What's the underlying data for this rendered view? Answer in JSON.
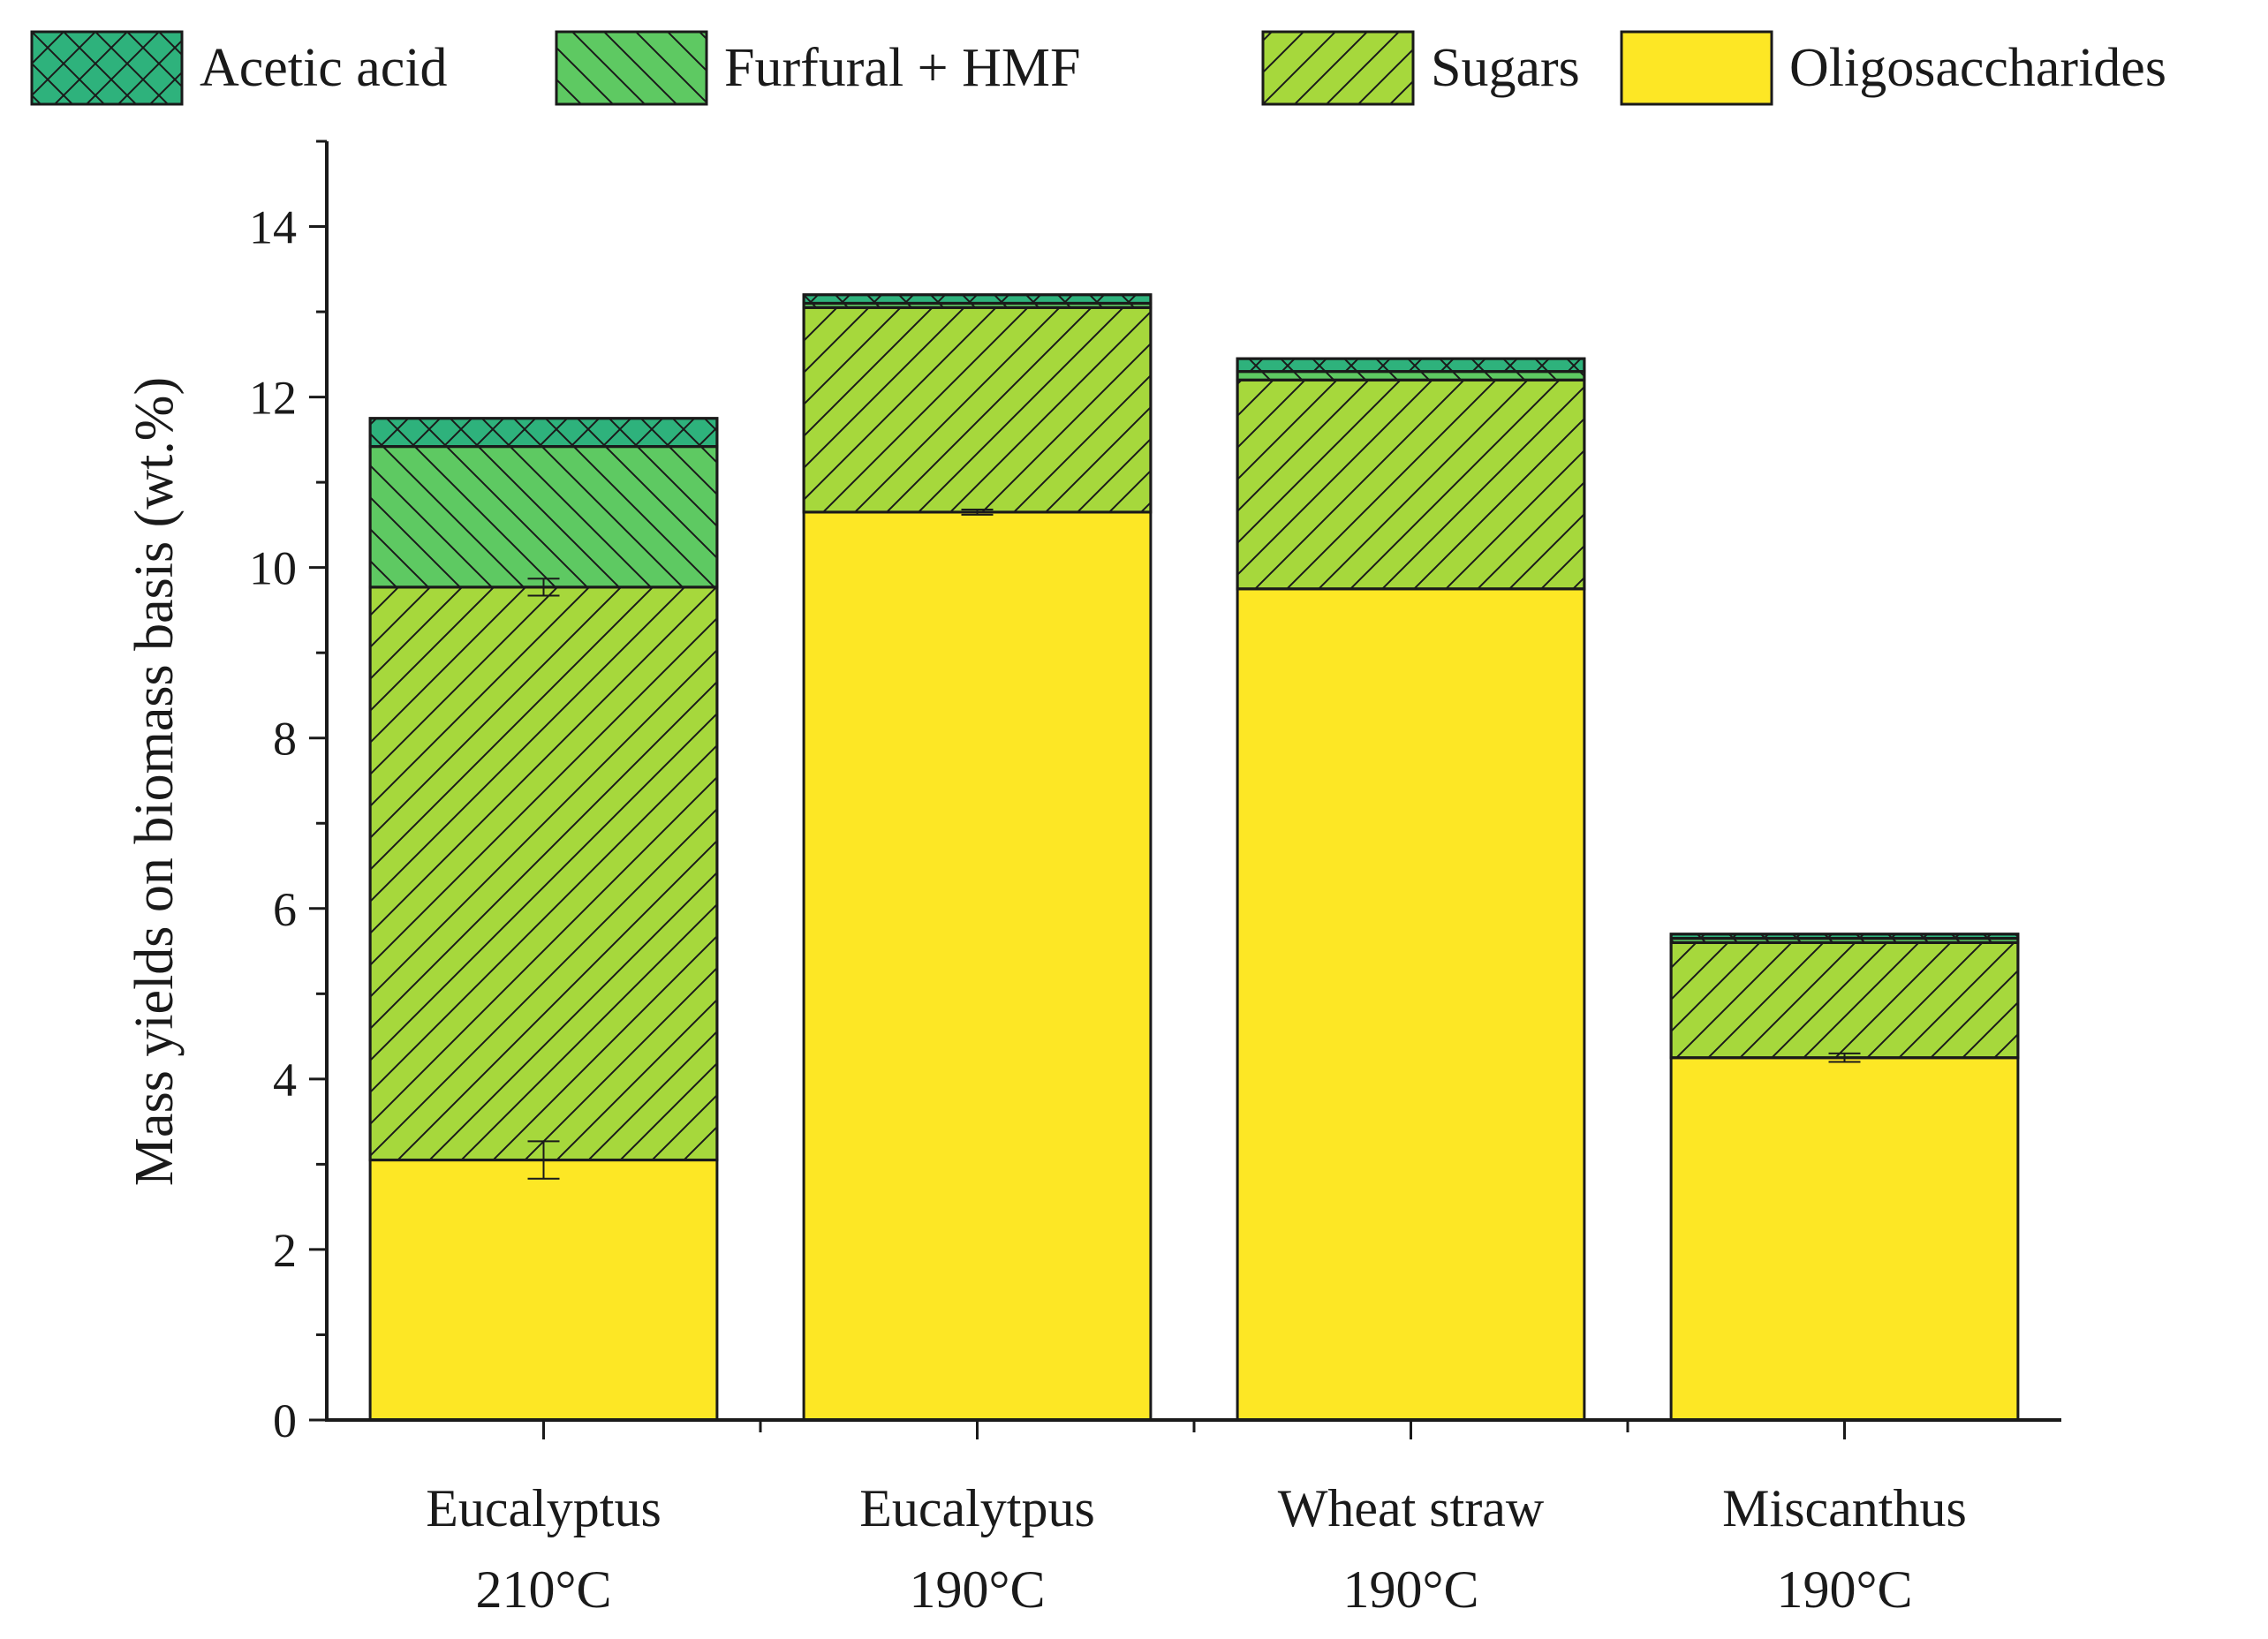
{
  "chart_data": {
    "type": "bar",
    "stacked": true,
    "title": "",
    "xlabel": "",
    "ylabel": "Mass yields on biomass basis (wt.%)",
    "ylim": [
      0,
      15
    ],
    "yticks": [
      0,
      2,
      4,
      6,
      8,
      10,
      12,
      14
    ],
    "grid": false,
    "legend_position": "top",
    "categories": [
      {
        "line1": "Eucalyptus",
        "line2": "210°C"
      },
      {
        "line1": "Eucalytpus",
        "line2": "190°C"
      },
      {
        "line1": "Wheat straw",
        "line2": "190°C"
      },
      {
        "line1": "Miscanthus",
        "line2": "190°C"
      }
    ],
    "series": [
      {
        "name": "Oligosaccharides",
        "values": [
          3.05,
          10.65,
          9.75,
          4.25
        ],
        "errors": [
          0.22,
          0.03,
          0.0,
          0.05
        ],
        "color": "#fde725",
        "pattern": "none"
      },
      {
        "name": "Sugars",
        "values": [
          6.72,
          2.4,
          2.45,
          1.35
        ],
        "errors": [
          0.1,
          0.0,
          0.0,
          0.0
        ],
        "color": "#a6d83c",
        "pattern": "diag-up"
      },
      {
        "name": "Furfural + HMF",
        "values": [
          1.65,
          0.05,
          0.1,
          0.05
        ],
        "errors": [
          0.0,
          0.0,
          0.0,
          0.0
        ],
        "color": "#5ec962",
        "pattern": "diag-down"
      },
      {
        "name": "Acetic acid",
        "values": [
          0.33,
          0.1,
          0.15,
          0.05
        ],
        "errors": [
          0.0,
          0.0,
          0.0,
          0.0
        ],
        "color": "#2eb27c",
        "pattern": "cross"
      }
    ],
    "legend_order": [
      "Acetic acid",
      "Furfural + HMF",
      "Sugars",
      "Oligosaccharides"
    ]
  }
}
